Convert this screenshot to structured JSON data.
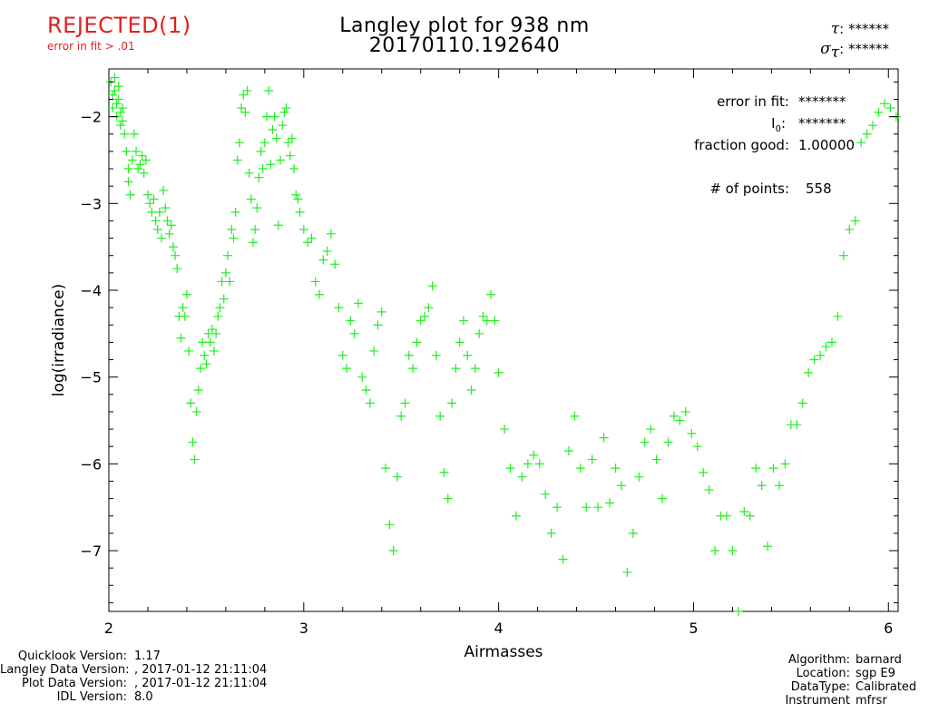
{
  "header": {
    "status": "REJECTED(1)",
    "status_reason": "error in fit > .01",
    "title_line1": "Langley plot for 938 nm",
    "title_line2": "20170110.192640",
    "tau_symbol": "τ",
    "tau_value": "******",
    "sigma_symbol": "σ",
    "sigma_sub": "τ",
    "sigma_value": "******"
  },
  "stats": {
    "error_label": "error in fit:",
    "error_value": "*******",
    "i0_label": "I",
    "i0_sub": "0",
    "i0_value": "*******",
    "fraction_label": "fraction good:",
    "fraction_value": "1.00000",
    "points_label": "# of points:",
    "points_value": "558"
  },
  "footer": {
    "left": [
      {
        "label": "Quicklook Version:",
        "value": "1.17"
      },
      {
        "label": "Langley Data Version:",
        "value": ", 2017-01-12 21:11:04"
      },
      {
        "label": "Plot Data Version:",
        "value": ", 2017-01-12 21:11:04"
      },
      {
        "label": "IDL Version:",
        "value": "8.0"
      }
    ],
    "right": [
      {
        "label": "Algorithm:",
        "value": "barnard"
      },
      {
        "label": "Location:",
        "value": "sgp E9"
      },
      {
        "label": "DataType:",
        "value": "Calibrated"
      },
      {
        "label": "Instrument",
        "value": "mfrsr"
      }
    ]
  },
  "colors": {
    "points": "#22ee22",
    "status": "#e02020",
    "axis": "#000000"
  },
  "chart_data": {
    "type": "scatter",
    "xlabel": "Airmasses",
    "ylabel": "log(irradiance)",
    "xlim": [
      2.0,
      6.05
    ],
    "ylim": [
      -7.7,
      -1.45
    ],
    "xticks": [
      2,
      3,
      4,
      5,
      6
    ],
    "yticks": [
      -2,
      -3,
      -4,
      -5,
      -6,
      -7
    ],
    "marker": "+",
    "series": [
      {
        "points": [
          [
            2.01,
            -1.6
          ],
          [
            2.02,
            -1.75
          ],
          [
            2.02,
            -1.9
          ],
          [
            2.03,
            -1.55
          ],
          [
            2.03,
            -1.7
          ],
          [
            2.04,
            -1.85
          ],
          [
            2.04,
            -2.0
          ],
          [
            2.05,
            -1.65
          ],
          [
            2.05,
            -1.8
          ],
          [
            2.06,
            -1.95
          ],
          [
            2.06,
            -2.1
          ],
          [
            2.07,
            -1.9
          ],
          [
            2.07,
            -2.05
          ],
          [
            2.08,
            -2.2
          ],
          [
            2.09,
            -2.4
          ],
          [
            2.1,
            -2.6
          ],
          [
            2.1,
            -2.75
          ],
          [
            2.11,
            -2.9
          ],
          [
            2.12,
            -2.5
          ],
          [
            2.13,
            -2.2
          ],
          [
            2.14,
            -2.4
          ],
          [
            2.15,
            -2.6
          ],
          [
            2.16,
            -2.55
          ],
          [
            2.17,
            -2.45
          ],
          [
            2.18,
            -2.65
          ],
          [
            2.19,
            -2.5
          ],
          [
            2.2,
            -2.9
          ],
          [
            2.21,
            -3.0
          ],
          [
            2.22,
            -3.1
          ],
          [
            2.23,
            -2.95
          ],
          [
            2.24,
            -3.2
          ],
          [
            2.25,
            -3.3
          ],
          [
            2.26,
            -3.1
          ],
          [
            2.27,
            -3.4
          ],
          [
            2.28,
            -2.85
          ],
          [
            2.29,
            -3.05
          ],
          [
            2.3,
            -3.2
          ],
          [
            2.31,
            -3.35
          ],
          [
            2.32,
            -3.25
          ],
          [
            2.33,
            -3.5
          ],
          [
            2.34,
            -3.6
          ],
          [
            2.35,
            -3.75
          ],
          [
            2.36,
            -4.3
          ],
          [
            2.37,
            -4.55
          ],
          [
            2.38,
            -4.2
          ],
          [
            2.39,
            -4.3
          ],
          [
            2.4,
            -4.05
          ],
          [
            2.41,
            -4.7
          ],
          [
            2.42,
            -5.3
          ],
          [
            2.43,
            -5.75
          ],
          [
            2.44,
            -5.95
          ],
          [
            2.45,
            -5.4
          ],
          [
            2.46,
            -5.15
          ],
          [
            2.47,
            -4.9
          ],
          [
            2.48,
            -4.6
          ],
          [
            2.49,
            -4.75
          ],
          [
            2.5,
            -4.85
          ],
          [
            2.51,
            -4.5
          ],
          [
            2.52,
            -4.6
          ],
          [
            2.53,
            -4.45
          ],
          [
            2.54,
            -4.7
          ],
          [
            2.55,
            -4.5
          ],
          [
            2.56,
            -4.3
          ],
          [
            2.57,
            -4.2
          ],
          [
            2.58,
            -3.9
          ],
          [
            2.59,
            -4.1
          ],
          [
            2.6,
            -3.8
          ],
          [
            2.61,
            -3.6
          ],
          [
            2.62,
            -3.9
          ],
          [
            2.63,
            -3.3
          ],
          [
            2.64,
            -3.4
          ],
          [
            2.65,
            -3.1
          ],
          [
            2.66,
            -2.5
          ],
          [
            2.67,
            -2.3
          ],
          [
            2.68,
            -1.9
          ],
          [
            2.69,
            -1.75
          ],
          [
            2.7,
            -1.95
          ],
          [
            2.71,
            -1.7
          ],
          [
            2.72,
            -2.65
          ],
          [
            2.73,
            -2.95
          ],
          [
            2.74,
            -3.45
          ],
          [
            2.75,
            -3.3
          ],
          [
            2.76,
            -3.05
          ],
          [
            2.77,
            -2.7
          ],
          [
            2.78,
            -2.4
          ],
          [
            2.79,
            -2.6
          ],
          [
            2.8,
            -2.3
          ],
          [
            2.81,
            -2.0
          ],
          [
            2.82,
            -1.7
          ],
          [
            2.83,
            -2.55
          ],
          [
            2.84,
            -2.15
          ],
          [
            2.85,
            -2.0
          ],
          [
            2.86,
            -2.25
          ],
          [
            2.87,
            -3.25
          ],
          [
            2.88,
            -2.5
          ],
          [
            2.89,
            -2.1
          ],
          [
            2.9,
            -1.95
          ],
          [
            2.91,
            -1.9
          ],
          [
            2.92,
            -2.3
          ],
          [
            2.93,
            -2.45
          ],
          [
            2.94,
            -2.25
          ],
          [
            2.95,
            -2.6
          ],
          [
            2.96,
            -2.9
          ],
          [
            2.97,
            -2.95
          ],
          [
            2.98,
            -3.1
          ],
          [
            3.0,
            -3.3
          ],
          [
            3.02,
            -3.45
          ],
          [
            3.04,
            -3.4
          ],
          [
            3.06,
            -3.9
          ],
          [
            3.08,
            -4.05
          ],
          [
            3.1,
            -3.65
          ],
          [
            3.12,
            -3.55
          ],
          [
            3.14,
            -3.35
          ],
          [
            3.16,
            -3.7
          ],
          [
            3.18,
            -4.2
          ],
          [
            3.2,
            -4.75
          ],
          [
            3.22,
            -4.9
          ],
          [
            3.24,
            -4.35
          ],
          [
            3.26,
            -4.5
          ],
          [
            3.28,
            -4.15
          ],
          [
            3.3,
            -5.0
          ],
          [
            3.32,
            -5.15
          ],
          [
            3.34,
            -5.3
          ],
          [
            3.36,
            -4.7
          ],
          [
            3.38,
            -4.4
          ],
          [
            3.4,
            -4.25
          ],
          [
            3.42,
            -6.05
          ],
          [
            3.44,
            -6.7
          ],
          [
            3.46,
            -7.0
          ],
          [
            3.48,
            -6.15
          ],
          [
            3.5,
            -5.45
          ],
          [
            3.52,
            -5.3
          ],
          [
            3.54,
            -4.75
          ],
          [
            3.56,
            -4.9
          ],
          [
            3.58,
            -4.6
          ],
          [
            3.6,
            -4.35
          ],
          [
            3.62,
            -4.3
          ],
          [
            3.64,
            -4.2
          ],
          [
            3.66,
            -3.95
          ],
          [
            3.68,
            -4.75
          ],
          [
            3.7,
            -5.45
          ],
          [
            3.72,
            -6.1
          ],
          [
            3.74,
            -6.4
          ],
          [
            3.76,
            -5.3
          ],
          [
            3.78,
            -4.9
          ],
          [
            3.8,
            -4.6
          ],
          [
            3.82,
            -4.35
          ],
          [
            3.84,
            -4.75
          ],
          [
            3.86,
            -5.15
          ],
          [
            3.88,
            -4.9
          ],
          [
            3.9,
            -4.5
          ],
          [
            3.92,
            -4.3
          ],
          [
            3.94,
            -4.35
          ],
          [
            3.96,
            -4.05
          ],
          [
            3.98,
            -4.35
          ],
          [
            4.0,
            -4.95
          ],
          [
            4.03,
            -5.6
          ],
          [
            4.06,
            -6.05
          ],
          [
            4.09,
            -6.6
          ],
          [
            4.12,
            -6.15
          ],
          [
            4.15,
            -6.0
          ],
          [
            4.18,
            -5.9
          ],
          [
            4.21,
            -6.0
          ],
          [
            4.24,
            -6.35
          ],
          [
            4.27,
            -6.8
          ],
          [
            4.3,
            -6.5
          ],
          [
            4.33,
            -7.1
          ],
          [
            4.36,
            -5.85
          ],
          [
            4.39,
            -5.45
          ],
          [
            4.42,
            -6.05
          ],
          [
            4.45,
            -6.5
          ],
          [
            4.48,
            -5.95
          ],
          [
            4.51,
            -6.5
          ],
          [
            4.54,
            -5.7
          ],
          [
            4.57,
            -6.45
          ],
          [
            4.6,
            -6.05
          ],
          [
            4.63,
            -6.25
          ],
          [
            4.66,
            -7.25
          ],
          [
            4.69,
            -6.8
          ],
          [
            4.72,
            -6.15
          ],
          [
            4.75,
            -5.75
          ],
          [
            4.78,
            -5.6
          ],
          [
            4.81,
            -5.95
          ],
          [
            4.84,
            -6.4
          ],
          [
            4.87,
            -5.75
          ],
          [
            4.9,
            -5.45
          ],
          [
            4.93,
            -5.5
          ],
          [
            4.96,
            -5.4
          ],
          [
            4.99,
            -5.65
          ],
          [
            5.02,
            -5.8
          ],
          [
            5.05,
            -6.1
          ],
          [
            5.08,
            -6.3
          ],
          [
            5.11,
            -7.0
          ],
          [
            5.14,
            -6.6
          ],
          [
            5.17,
            -6.6
          ],
          [
            5.2,
            -7.0
          ],
          [
            5.23,
            -7.7
          ],
          [
            5.26,
            -6.55
          ],
          [
            5.29,
            -6.6
          ],
          [
            5.32,
            -6.05
          ],
          [
            5.35,
            -6.25
          ],
          [
            5.38,
            -6.95
          ],
          [
            5.41,
            -6.05
          ],
          [
            5.44,
            -6.25
          ],
          [
            5.47,
            -6.0
          ],
          [
            5.5,
            -5.55
          ],
          [
            5.53,
            -5.55
          ],
          [
            5.56,
            -5.3
          ],
          [
            5.59,
            -4.95
          ],
          [
            5.62,
            -4.8
          ],
          [
            5.65,
            -4.75
          ],
          [
            5.68,
            -4.65
          ],
          [
            5.71,
            -4.6
          ],
          [
            5.74,
            -4.3
          ],
          [
            5.77,
            -3.6
          ],
          [
            5.8,
            -3.3
          ],
          [
            5.83,
            -3.2
          ],
          [
            5.86,
            -2.3
          ],
          [
            5.89,
            -2.2
          ],
          [
            5.92,
            -2.1
          ],
          [
            5.95,
            -1.95
          ],
          [
            5.98,
            -1.85
          ],
          [
            6.01,
            -1.9
          ],
          [
            6.04,
            -2.0
          ]
        ]
      }
    ]
  }
}
